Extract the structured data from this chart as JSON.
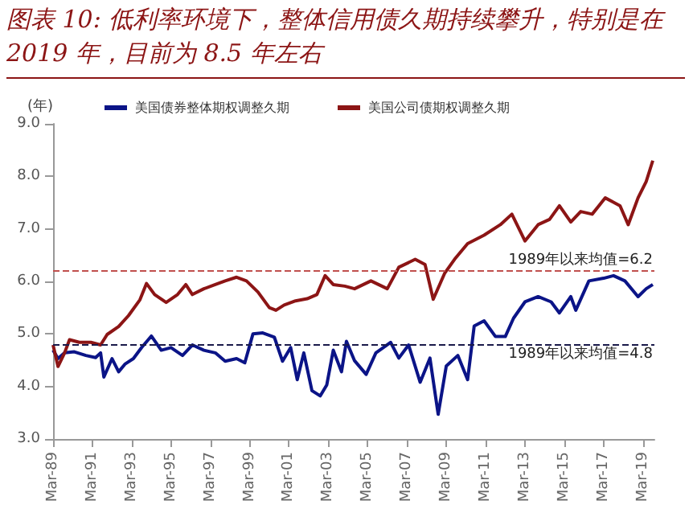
{
  "chart_data": {
    "type": "line",
    "title": "图表 10: 低利率环境下，整体信用债久期持续攀升，特别是在 2019 年，目前为 8.5 年左右",
    "ylabel": "(年)",
    "xlim": [
      "1989-03",
      "2019-10"
    ],
    "xticks": [
      {
        "value": "1989-03",
        "label": "Mar-89"
      },
      {
        "value": "1991-03",
        "label": "Mar-91"
      },
      {
        "value": "1993-03",
        "label": "Mar-93"
      },
      {
        "value": "1995-03",
        "label": "Mar-95"
      },
      {
        "value": "1997-03",
        "label": "Mar-97"
      },
      {
        "value": "1999-03",
        "label": "Mar-99"
      },
      {
        "value": "2001-03",
        "label": "Mar-01"
      },
      {
        "value": "2003-03",
        "label": "Mar-03"
      },
      {
        "value": "2005-03",
        "label": "Mar-05"
      },
      {
        "value": "2007-03",
        "label": "Mar-07"
      },
      {
        "value": "2009-03",
        "label": "Mar-09"
      },
      {
        "value": "2011-03",
        "label": "Mar-11"
      },
      {
        "value": "2013-03",
        "label": "Mar-13"
      },
      {
        "value": "2015-03",
        "label": "Mar-15"
      },
      {
        "value": "2017-03",
        "label": "Mar-17"
      },
      {
        "value": "2019-03",
        "label": "Mar-19"
      }
    ],
    "ylim": [
      3,
      9
    ],
    "yticks": [
      {
        "value": 3,
        "label": "3.0"
      },
      {
        "value": 4,
        "label": "4.0"
      },
      {
        "value": 5,
        "label": "5.0"
      },
      {
        "value": 6,
        "label": "6.0"
      },
      {
        "value": 7,
        "label": "7.0"
      },
      {
        "value": 8,
        "label": "8.0"
      },
      {
        "value": 9,
        "label": "9.0"
      }
    ],
    "grid": false,
    "legend": "top",
    "marker": "none",
    "series": [
      {
        "name": "美国债券整体期权调整久期",
        "color": "#0b1487",
        "x": [
          "1989-03",
          "1989-06",
          "1989-10",
          "1990-04",
          "1990-11",
          "1991-05",
          "1991-08",
          "1991-10",
          "1992-03",
          "1992-07",
          "1992-11",
          "1993-04",
          "1993-09",
          "1994-03",
          "1994-09",
          "1995-03",
          "1995-10",
          "1996-04",
          "1996-11",
          "1997-06",
          "1997-12",
          "1998-07",
          "1998-12",
          "1999-05",
          "1999-11",
          "2000-06",
          "2000-11",
          "2001-04",
          "2001-08",
          "2001-12",
          "2002-05",
          "2002-10",
          "2003-02",
          "2003-06",
          "2003-11",
          "2004-02",
          "2004-07",
          "2005-02",
          "2005-08",
          "2006-05",
          "2006-10",
          "2007-04",
          "2007-11",
          "2008-05",
          "2008-10",
          "2009-03",
          "2009-10",
          "2010-04",
          "2010-08",
          "2011-02",
          "2011-09",
          "2012-03",
          "2012-08",
          "2013-03",
          "2013-11",
          "2014-07",
          "2014-12",
          "2015-07",
          "2015-10",
          "2016-06",
          "2017-03",
          "2017-09",
          "2018-04",
          "2018-12",
          "2019-05",
          "2019-09"
        ],
        "values": [
          4.69,
          4.53,
          4.64,
          4.66,
          4.59,
          4.55,
          4.64,
          4.18,
          4.53,
          4.28,
          4.43,
          4.53,
          4.74,
          4.96,
          4.69,
          4.74,
          4.59,
          4.79,
          4.69,
          4.64,
          4.48,
          4.53,
          4.45,
          5.0,
          5.02,
          4.94,
          4.48,
          4.74,
          4.13,
          4.64,
          3.92,
          3.82,
          4.03,
          4.69,
          4.28,
          4.86,
          4.49,
          4.23,
          4.64,
          4.84,
          4.54,
          4.79,
          4.08,
          4.54,
          3.47,
          4.39,
          4.59,
          4.13,
          5.15,
          5.25,
          4.95,
          4.95,
          5.3,
          5.61,
          5.71,
          5.61,
          5.4,
          5.71,
          5.45,
          6.01,
          6.06,
          6.11,
          6.01,
          5.71,
          5.86,
          5.94
        ]
      },
      {
        "name": "美国公司债期权调整久期",
        "color": "#8c1515",
        "x": [
          "1989-03",
          "1989-06",
          "1989-10",
          "1990-01",
          "1990-07",
          "1991-02",
          "1991-08",
          "1991-12",
          "1992-07",
          "1993-01",
          "1993-08",
          "1993-12",
          "1994-05",
          "1994-12",
          "1995-07",
          "1995-12",
          "1996-04",
          "1996-11",
          "1997-06",
          "1997-12",
          "1998-07",
          "1999-01",
          "1999-08",
          "2000-03",
          "2000-07",
          "2000-12",
          "2001-07",
          "2002-02",
          "2002-08",
          "2003-01",
          "2003-06",
          "2004-01",
          "2004-07",
          "2005-05",
          "2006-03",
          "2006-10",
          "2007-08",
          "2008-02",
          "2008-07",
          "2009-02",
          "2009-08",
          "2010-04",
          "2011-02",
          "2011-12",
          "2012-07",
          "2013-03",
          "2013-11",
          "2014-06",
          "2014-12",
          "2015-07",
          "2016-01",
          "2016-08",
          "2017-04",
          "2018-01",
          "2018-06",
          "2018-12",
          "2019-05",
          "2019-09"
        ],
        "values": [
          4.79,
          4.38,
          4.64,
          4.89,
          4.84,
          4.84,
          4.79,
          4.99,
          5.14,
          5.35,
          5.65,
          5.96,
          5.75,
          5.6,
          5.75,
          5.94,
          5.75,
          5.86,
          5.94,
          6.01,
          6.08,
          6.01,
          5.8,
          5.5,
          5.45,
          5.55,
          5.63,
          5.67,
          5.75,
          6.11,
          5.94,
          5.91,
          5.86,
          6.01,
          5.86,
          6.27,
          6.42,
          6.32,
          5.66,
          6.16,
          6.42,
          6.72,
          6.88,
          7.08,
          7.28,
          6.77,
          7.08,
          7.18,
          7.44,
          7.13,
          7.33,
          7.28,
          7.59,
          7.44,
          7.08,
          7.59,
          7.9,
          8.3
        ]
      }
    ],
    "ref_lines": [
      {
        "axis": "y",
        "value": 6.2,
        "label": "1989年以来均值=6.2",
        "color": "#c0504d",
        "line_style": "dashed"
      },
      {
        "axis": "y",
        "value": 4.8,
        "label": "1989年以来均值=4.8",
        "color": "#1a1a4a",
        "line_style": "dashed"
      }
    ]
  }
}
